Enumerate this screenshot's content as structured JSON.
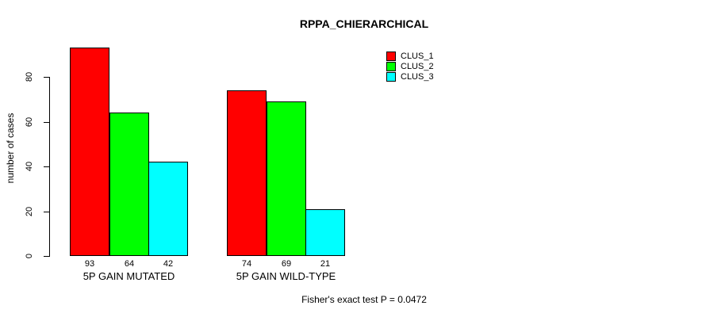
{
  "title": "RPPA_CHIERARCHICAL",
  "annotation": "Fisher's exact test P = 0.0472",
  "chart_data": {
    "type": "bar",
    "categories": [
      "5P GAIN MUTATED",
      "5P GAIN WILD-TYPE"
    ],
    "series": [
      {
        "name": "CLUS_1",
        "color": "#FF0000",
        "values": [
          93,
          74
        ]
      },
      {
        "name": "CLUS_2",
        "color": "#00FF00",
        "values": [
          64,
          69
        ]
      },
      {
        "name": "CLUS_3",
        "color": "#00FFFF",
        "values": [
          42,
          21
        ]
      }
    ],
    "xlabel": "",
    "ylabel": "number of cases",
    "yticks": [
      0,
      20,
      40,
      60,
      80
    ],
    "ylim": [
      0,
      95
    ],
    "bar_value_labels_shown": true,
    "bar_border_color": "#000000",
    "grid": false,
    "legend_position": "top-right"
  }
}
